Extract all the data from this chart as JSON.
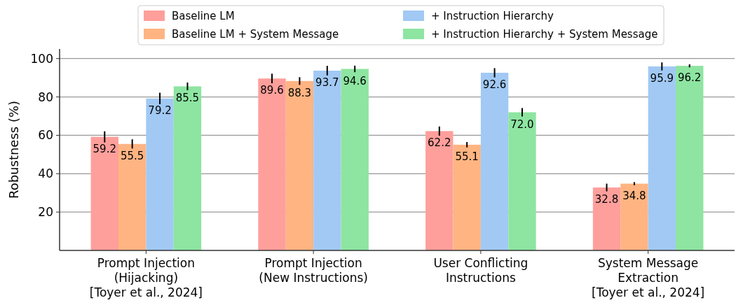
{
  "chart_data": {
    "type": "bar",
    "ylabel": "Robustness (%)",
    "categories": [
      "Prompt Injection\n(Hijacking)\n[Toyer et al., 2024]",
      "Prompt Injection\n(New Instructions)",
      "User Conflicting\nInstructions",
      "System Message\nExtraction\n[Toyer et al., 2024]"
    ],
    "series": [
      {
        "name": "Baseline LM",
        "color": "#ff9f9b",
        "values": [
          59.2,
          89.6,
          62.2,
          32.8
        ],
        "errors": [
          2.9,
          2.5,
          2.4,
          2.0
        ],
        "value_labels": [
          "59.2",
          "89.6",
          "62.2",
          "32.8"
        ]
      },
      {
        "name": "Baseline LM + System Message",
        "color": "#ffb482",
        "values": [
          55.5,
          88.3,
          55.1,
          34.8
        ],
        "errors": [
          2.4,
          2.0,
          1.4,
          0.8
        ],
        "value_labels": [
          "55.5",
          "88.3",
          "55.1",
          "34.8"
        ]
      },
      {
        "name": "+ Instruction Hierarchy",
        "color": "#a1c9f4",
        "values": [
          79.2,
          93.7,
          92.6,
          95.9
        ],
        "errors": [
          3.0,
          2.5,
          2.4,
          2.1
        ],
        "value_labels": [
          "79.2",
          "93.7",
          "92.6",
          "95.9"
        ]
      },
      {
        "name": "+ Instruction Hierarchy + System Message",
        "color": "#8de5a1",
        "values": [
          85.5,
          94.6,
          72.0,
          96.2
        ],
        "errors": [
          2.0,
          1.7,
          2.2,
          0.8
        ],
        "value_labels": [
          "85.5",
          "94.6",
          "72.0",
          "96.2"
        ]
      }
    ],
    "ylim": [
      0,
      105
    ],
    "yticks": [
      20,
      40,
      60,
      80,
      100
    ],
    "grid": "y",
    "legend": "top"
  }
}
